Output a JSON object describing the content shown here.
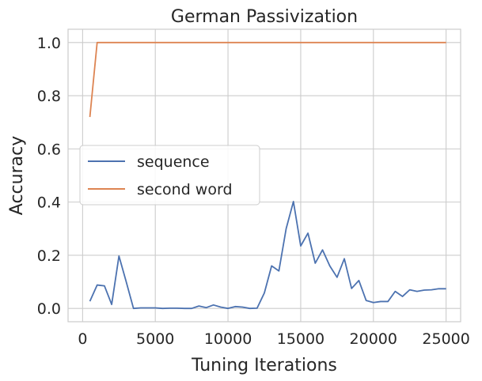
{
  "chart_data": {
    "type": "line",
    "title": "German Passivization",
    "xlabel": "Tuning Iterations",
    "ylabel": "Accuracy",
    "xlim": [
      -1000,
      26000
    ],
    "ylim": [
      -0.05,
      1.05
    ],
    "xticks": [
      0,
      5000,
      10000,
      15000,
      20000,
      25000
    ],
    "xtick_labels": [
      "0",
      "5000",
      "10000",
      "15000",
      "20000",
      "25000"
    ],
    "yticks": [
      0.0,
      0.2,
      0.4,
      0.6,
      0.8,
      1.0
    ],
    "ytick_labels": [
      "0.0",
      "0.2",
      "0.4",
      "0.6",
      "0.8",
      "1.0"
    ],
    "grid": true,
    "legend_position": "center-left",
    "series": [
      {
        "name": "sequence",
        "color": "#4c72b0",
        "x": [
          500,
          1000,
          1500,
          2000,
          2500,
          3000,
          3500,
          4000,
          4500,
          5000,
          5500,
          6000,
          6500,
          7000,
          7500,
          8000,
          8500,
          9000,
          9500,
          10000,
          10500,
          11000,
          11500,
          12000,
          12500,
          13000,
          13500,
          14000,
          14500,
          15000,
          15500,
          16000,
          16500,
          17000,
          17500,
          18000,
          18500,
          19000,
          19500,
          20000,
          20500,
          21000,
          21500,
          22000,
          22500,
          23000,
          23500,
          24000,
          24500,
          25000
        ],
        "y": [
          0.027,
          0.088,
          0.085,
          0.015,
          0.197,
          0.1,
          0.0,
          0.002,
          0.002,
          0.002,
          0.0,
          0.001,
          0.001,
          0.0,
          0.0,
          0.009,
          0.003,
          0.013,
          0.005,
          0.0,
          0.007,
          0.005,
          0.0,
          0.001,
          0.058,
          0.16,
          0.141,
          0.3,
          0.402,
          0.235,
          0.283,
          0.17,
          0.22,
          0.16,
          0.117,
          0.187,
          0.075,
          0.105,
          0.03,
          0.022,
          0.026,
          0.026,
          0.064,
          0.045,
          0.07,
          0.064,
          0.069,
          0.07,
          0.074,
          0.074
        ]
      },
      {
        "name": "second word",
        "color": "#dd8452",
        "x": [
          500,
          1000,
          1500,
          2000,
          2500,
          3000,
          5000,
          10000,
          15000,
          20000,
          25000
        ],
        "y": [
          0.72,
          1.0,
          1.0,
          1.0,
          1.0,
          1.0,
          1.0,
          1.0,
          1.0,
          1.0,
          1.0
        ]
      }
    ]
  }
}
